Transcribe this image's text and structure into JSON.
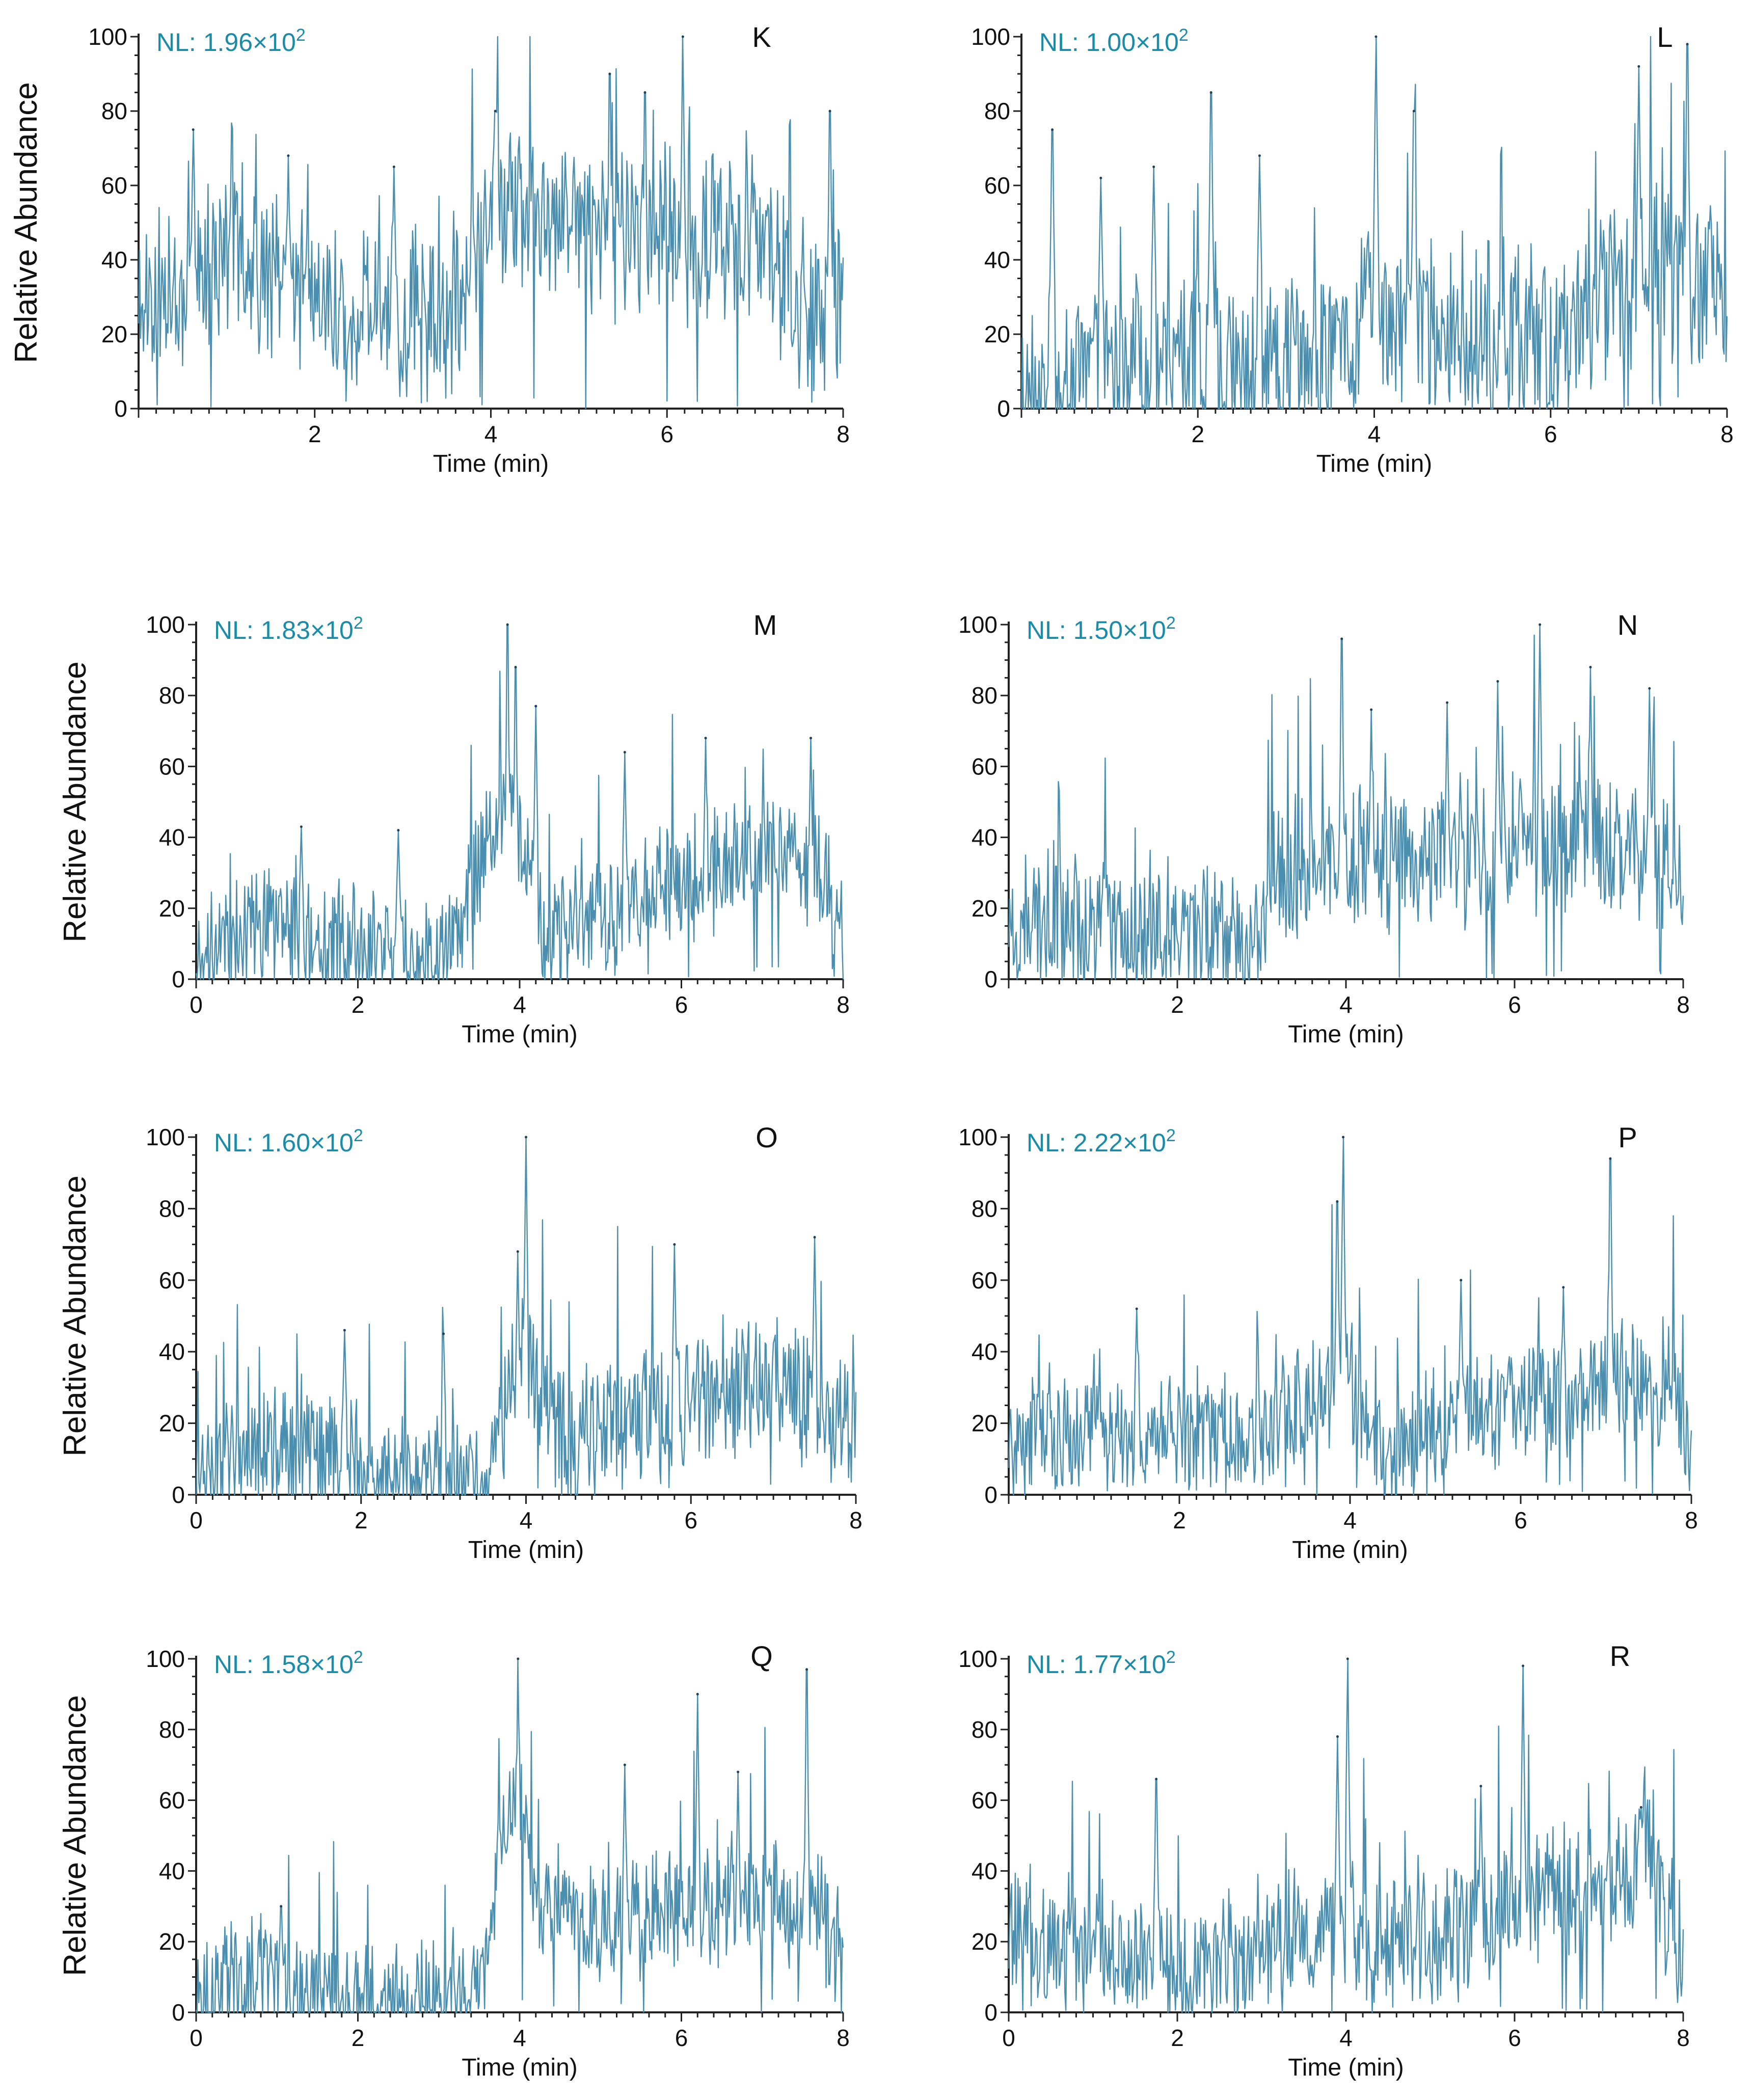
{
  "figure": {
    "trace_color": "#4a8fb0",
    "nl_color": "#1a8ca8"
  },
  "chart_data": [
    {
      "panel": "K",
      "type": "line",
      "nl": "NL: 1.96×10",
      "nl_exp": "2",
      "ylabel": "Relative Abundance",
      "xlabel": "Time (min)",
      "xlim": [
        0,
        8
      ],
      "ylim": [
        0,
        100
      ],
      "xticks": [
        "2",
        "4",
        "6",
        "8"
      ],
      "yticks": [
        "0",
        "20",
        "40",
        "60",
        "80",
        "100"
      ],
      "seed": 11,
      "baseline": [
        [
          0,
          32
        ],
        [
          1,
          42
        ],
        [
          2,
          28
        ],
        [
          3,
          24
        ],
        [
          3.7,
          32
        ],
        [
          4,
          58
        ],
        [
          5,
          46
        ],
        [
          6,
          48
        ],
        [
          7,
          44
        ],
        [
          7.7,
          22
        ],
        [
          8,
          26
        ]
      ],
      "noise": 26,
      "peaks": [
        [
          6.18,
          100
        ],
        [
          4.05,
          80
        ],
        [
          5.35,
          90
        ],
        [
          5.75,
          85
        ],
        [
          7.85,
          80
        ],
        [
          0.62,
          75
        ],
        [
          2.9,
          65
        ],
        [
          1.7,
          68
        ]
      ]
    },
    {
      "panel": "L",
      "type": "line",
      "nl": "NL: 1.00×10",
      "nl_exp": "2",
      "ylabel": "",
      "xlabel": "Time (min)",
      "xlim": [
        0,
        8
      ],
      "ylim": [
        0,
        100
      ],
      "xticks": [
        "2",
        "4",
        "6",
        "8"
      ],
      "yticks": [
        "0",
        "20",
        "40",
        "60",
        "80",
        "100"
      ],
      "seed": 23,
      "baseline": [
        [
          0,
          8
        ],
        [
          1,
          14
        ],
        [
          2,
          10
        ],
        [
          3,
          12
        ],
        [
          4,
          22
        ],
        [
          5,
          24
        ],
        [
          6,
          14
        ],
        [
          6.5,
          26
        ],
        [
          7,
          38
        ],
        [
          8,
          30
        ]
      ],
      "noise": 28,
      "peaks": [
        [
          4.02,
          100
        ],
        [
          7.55,
          98
        ],
        [
          7.0,
          92
        ],
        [
          2.15,
          85
        ],
        [
          0.35,
          75
        ],
        [
          2.7,
          68
        ],
        [
          1.5,
          65
        ],
        [
          0.9,
          62
        ],
        [
          4.45,
          80
        ]
      ]
    },
    {
      "panel": "M",
      "type": "line",
      "nl": "NL: 1.83×10",
      "nl_exp": "2",
      "ylabel": "Relative Abundance",
      "xlabel": "Time (min)",
      "xlim": [
        0,
        8
      ],
      "ylim": [
        0,
        100
      ],
      "xticks": [
        "0",
        "2",
        "4",
        "6",
        "8"
      ],
      "yticks": [
        "0",
        "20",
        "40",
        "60",
        "80",
        "100"
      ],
      "seed": 37,
      "baseline": [
        [
          0,
          10
        ],
        [
          1,
          16
        ],
        [
          2,
          10
        ],
        [
          3,
          2
        ],
        [
          3.3,
          20
        ],
        [
          3.85,
          55
        ],
        [
          4.2,
          30
        ],
        [
          4.3,
          10
        ],
        [
          5,
          20
        ],
        [
          6,
          28
        ],
        [
          7,
          36
        ],
        [
          7.8,
          30
        ],
        [
          8,
          12
        ]
      ],
      "noise": 20,
      "peaks": [
        [
          3.85,
          100
        ],
        [
          3.95,
          88
        ],
        [
          4.2,
          77
        ],
        [
          5.3,
          64
        ],
        [
          6.3,
          68
        ],
        [
          7.6,
          68
        ],
        [
          1.3,
          43
        ],
        [
          2.5,
          42
        ]
      ]
    },
    {
      "panel": "N",
      "type": "line",
      "nl": "NL: 1.50×10",
      "nl_exp": "2",
      "ylabel": "",
      "xlabel": "Time (min)",
      "xlim": [
        0,
        8
      ],
      "ylim": [
        0,
        100
      ],
      "xticks": [
        "2",
        "4",
        "6",
        "8"
      ],
      "yticks": [
        "0",
        "20",
        "40",
        "60",
        "80",
        "100"
      ],
      "seed": 53,
      "baseline": [
        [
          0,
          16
        ],
        [
          1,
          16
        ],
        [
          2,
          12
        ],
        [
          3,
          12
        ],
        [
          3.1,
          28
        ],
        [
          4,
          34
        ],
        [
          5,
          34
        ],
        [
          6,
          38
        ],
        [
          7,
          40
        ],
        [
          8,
          30
        ]
      ],
      "noise": 24,
      "peaks": [
        [
          6.3,
          100
        ],
        [
          3.95,
          96
        ],
        [
          6.9,
          88
        ],
        [
          5.8,
          84
        ],
        [
          7.6,
          82
        ],
        [
          5.2,
          78
        ],
        [
          4.3,
          76
        ]
      ]
    },
    {
      "panel": "O",
      "type": "line",
      "nl": "NL: 1.60×10",
      "nl_exp": "2",
      "ylabel": "Relative Abundance",
      "xlabel": "Time (min)",
      "xlim": [
        0,
        8
      ],
      "ylim": [
        0,
        100
      ],
      "xticks": [
        "0",
        "2",
        "4",
        "6",
        "8"
      ],
      "yticks": [
        "0",
        "20",
        "40",
        "60",
        "80",
        "100"
      ],
      "seed": 71,
      "baseline": [
        [
          0,
          4
        ],
        [
          1,
          16
        ],
        [
          2,
          6
        ],
        [
          2.3,
          2
        ],
        [
          3.5,
          4
        ],
        [
          3.7,
          20
        ],
        [
          4,
          40
        ],
        [
          4.5,
          10
        ],
        [
          5,
          22
        ],
        [
          6,
          26
        ],
        [
          7,
          32
        ],
        [
          8,
          18
        ]
      ],
      "noise": 22,
      "peaks": [
        [
          4.0,
          100
        ],
        [
          3.9,
          68
        ],
        [
          5.8,
          70
        ],
        [
          7.5,
          72
        ],
        [
          1.8,
          46
        ],
        [
          3.0,
          45
        ]
      ]
    },
    {
      "panel": "P",
      "type": "line",
      "nl": "NL: 2.22×10",
      "nl_exp": "2",
      "ylabel": "",
      "xlabel": "Time (min)",
      "xlim": [
        0,
        8
      ],
      "ylim": [
        0,
        100
      ],
      "xticks": [
        "2",
        "4",
        "6",
        "8"
      ],
      "yticks": [
        "0",
        "20",
        "40",
        "60",
        "80",
        "100"
      ],
      "seed": 89,
      "baseline": [
        [
          0,
          14
        ],
        [
          1,
          18
        ],
        [
          2,
          18
        ],
        [
          3,
          16
        ],
        [
          3.9,
          36
        ],
        [
          4.2,
          22
        ],
        [
          4.4,
          6
        ],
        [
          5,
          20
        ],
        [
          6,
          24
        ],
        [
          7,
          30
        ],
        [
          7.8,
          32
        ],
        [
          8,
          12
        ]
      ],
      "noise": 20,
      "peaks": [
        [
          3.92,
          100
        ],
        [
          7.05,
          94
        ],
        [
          3.85,
          82
        ],
        [
          5.3,
          60
        ],
        [
          6.5,
          58
        ],
        [
          1.5,
          52
        ]
      ]
    },
    {
      "panel": "Q",
      "type": "line",
      "nl": "NL: 1.58×10",
      "nl_exp": "2",
      "ylabel": "Relative Abundance",
      "xlabel": "Time (min)",
      "xlim": [
        0,
        8
      ],
      "ylim": [
        0,
        100
      ],
      "xticks": [
        "0",
        "2",
        "4",
        "6",
        "8"
      ],
      "yticks": [
        "0",
        "20",
        "40",
        "60",
        "80",
        "100"
      ],
      "seed": 97,
      "baseline": [
        [
          0,
          6
        ],
        [
          1,
          10
        ],
        [
          1.2,
          2
        ],
        [
          2,
          1
        ],
        [
          3,
          1
        ],
        [
          3.6,
          6
        ],
        [
          3.75,
          48
        ],
        [
          4,
          62
        ],
        [
          4.2,
          28
        ],
        [
          5,
          24
        ],
        [
          6,
          30
        ],
        [
          7,
          34
        ],
        [
          7.8,
          26
        ],
        [
          8,
          12
        ]
      ],
      "noise": 20,
      "peaks": [
        [
          3.98,
          100
        ],
        [
          6.2,
          90
        ],
        [
          7.55,
          97
        ],
        [
          5.3,
          70
        ],
        [
          6.7,
          68
        ],
        [
          1.05,
          30
        ]
      ]
    },
    {
      "panel": "R",
      "type": "line",
      "nl": "NL: 1.77×10",
      "nl_exp": "2",
      "ylabel": "",
      "xlabel": "Time (min)",
      "xlim": [
        0,
        8
      ],
      "ylim": [
        0,
        100
      ],
      "xticks": [
        "0",
        "2",
        "4",
        "6",
        "8"
      ],
      "yticks": [
        "0",
        "20",
        "40",
        "60",
        "80",
        "100"
      ],
      "seed": 113,
      "baseline": [
        [
          0,
          20
        ],
        [
          1,
          18
        ],
        [
          2,
          12
        ],
        [
          3,
          16
        ],
        [
          3.9,
          26
        ],
        [
          4.2,
          18
        ],
        [
          5,
          22
        ],
        [
          6,
          30
        ],
        [
          7,
          36
        ],
        [
          7.6,
          42
        ],
        [
          8,
          16
        ]
      ],
      "noise": 22,
      "peaks": [
        [
          4.02,
          100
        ],
        [
          6.1,
          98
        ],
        [
          1.75,
          66
        ],
        [
          3.9,
          78
        ],
        [
          5.6,
          64
        ],
        [
          7.5,
          58
        ]
      ]
    }
  ]
}
